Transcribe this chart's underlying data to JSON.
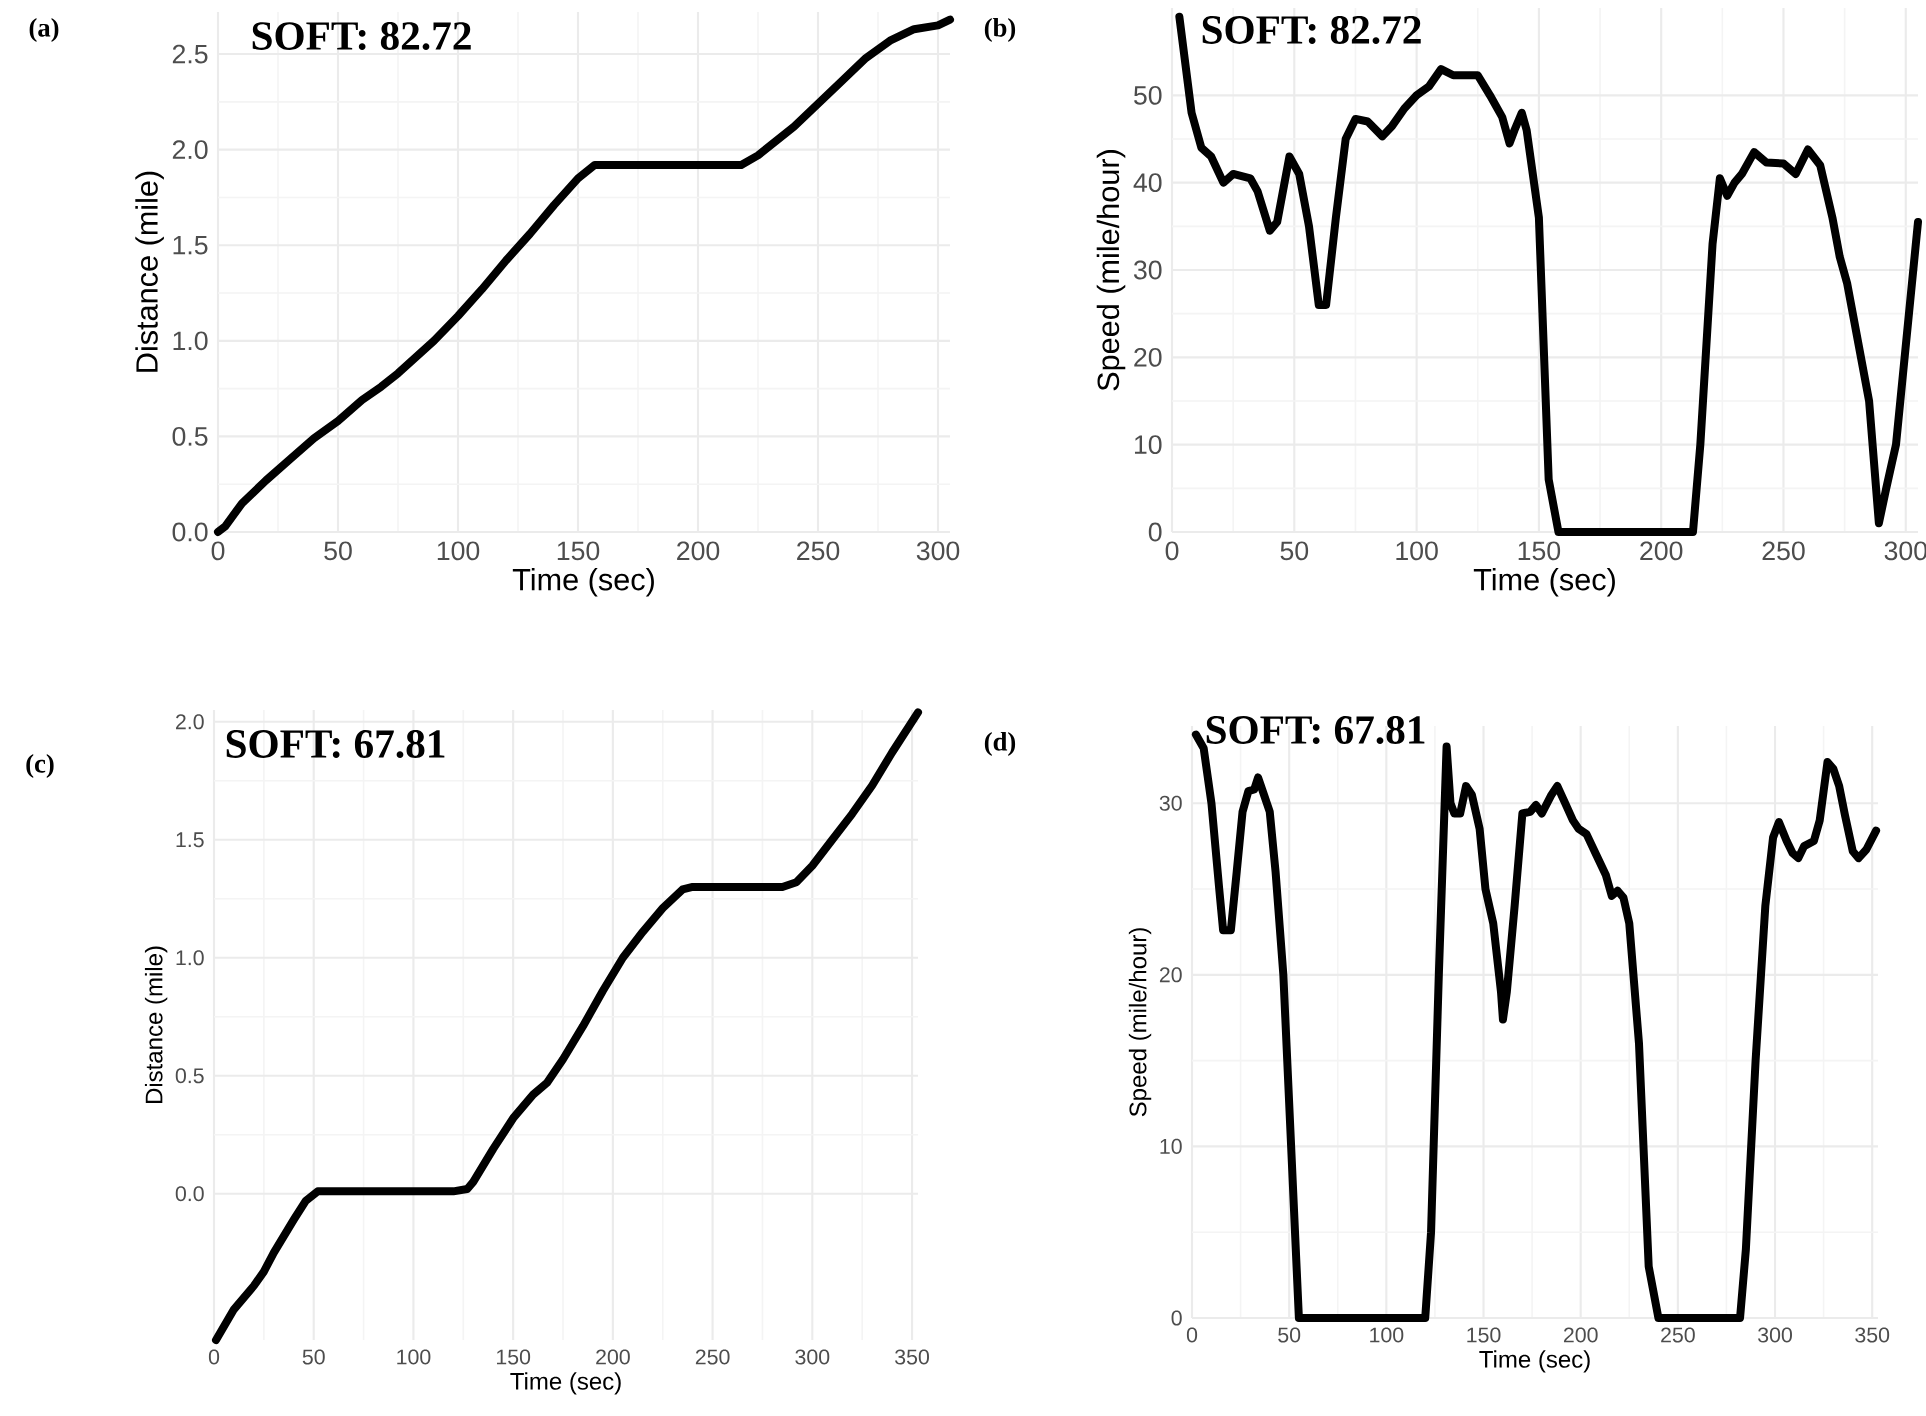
{
  "chart_data": [
    {
      "type": "line",
      "xlabel": "Time (sec)",
      "ylabel": "Distance (mile)",
      "xlim": [
        0,
        305
      ],
      "ylim": [
        0,
        2.72
      ],
      "xticks": [
        0,
        50,
        100,
        150,
        200,
        250,
        300
      ],
      "yticks": [
        {
          "value": 0,
          "label": "0.0"
        },
        {
          "value": 0.5,
          "label": "0.5"
        },
        {
          "value": 1,
          "label": "1.0"
        },
        {
          "value": 1.5,
          "label": "1.5"
        },
        {
          "value": 2,
          "label": "2.0"
        },
        {
          "value": 2.5,
          "label": "2.5"
        }
      ],
      "grid": true,
      "annotations": [
        "(a)",
        "SOFT: 82.72"
      ],
      "series": [
        {
          "color": "#000000",
          "x": [
            0,
            3,
            10,
            20,
            30,
            40,
            50,
            60,
            68,
            75,
            90,
            100,
            110,
            120,
            130,
            140,
            150,
            157,
            170,
            200,
            218,
            225,
            240,
            250,
            260,
            270,
            280,
            290,
            300,
            305
          ],
          "values": [
            0,
            0.03,
            0.15,
            0.27,
            0.38,
            0.49,
            0.58,
            0.69,
            0.76,
            0.83,
            1.0,
            1.13,
            1.27,
            1.42,
            1.56,
            1.71,
            1.85,
            1.92,
            1.92,
            1.92,
            1.92,
            1.97,
            2.12,
            2.24,
            2.36,
            2.48,
            2.57,
            2.63,
            2.65,
            2.68
          ]
        }
      ]
    },
    {
      "type": "line",
      "xlabel": "Time (sec)",
      "ylabel": "Speed (mile/hour)",
      "xlim": [
        0,
        305
      ],
      "ylim": [
        0,
        60
      ],
      "xticks": [
        0,
        50,
        100,
        150,
        200,
        250,
        300
      ],
      "yticks": [
        0,
        10,
        20,
        30,
        40,
        50
      ],
      "grid": true,
      "annotations": [
        "(b)",
        "SOFT: 82.72"
      ],
      "series": [
        {
          "color": "#000000",
          "x": [
            3,
            8,
            12,
            16,
            21,
            25,
            32,
            35,
            40,
            43,
            48,
            52,
            56,
            60,
            63,
            67,
            71,
            75,
            80,
            86,
            90,
            95,
            100,
            105,
            110,
            115,
            125,
            130,
            135,
            138,
            140,
            143,
            145,
            150,
            154,
            158,
            213,
            216,
            221,
            224,
            227,
            230,
            233,
            238,
            243,
            250,
            255,
            260,
            265,
            270,
            273,
            276,
            285,
            289,
            292,
            296,
            305
          ],
          "values": [
            59,
            48,
            44,
            43,
            40,
            41,
            40.5,
            39,
            34.5,
            35.5,
            43,
            41,
            35,
            26,
            26,
            36,
            45,
            47.3,
            47,
            45.3,
            46.5,
            48.5,
            50,
            51,
            53,
            52.3,
            52.3,
            50,
            47.5,
            44.5,
            46,
            48,
            46,
            36,
            6,
            0,
            0,
            10,
            33,
            40.5,
            38.5,
            40,
            41,
            43.5,
            42.3,
            42.2,
            41,
            43.8,
            42,
            36,
            31.5,
            28.5,
            15,
            1,
            5,
            10,
            35.5
          ]
        }
      ]
    },
    {
      "type": "line",
      "xlabel": "Time (sec)",
      "ylabel": "Distance (mile)",
      "xlim": [
        0,
        353
      ],
      "ylim": [
        -0.62,
        2.05
      ],
      "xticks": [
        0,
        50,
        100,
        150,
        200,
        250,
        300,
        350
      ],
      "yticks": [
        {
          "value": 0,
          "label": "0.0"
        },
        {
          "value": 0.5,
          "label": "0.5"
        },
        {
          "value": 1,
          "label": "1.0"
        },
        {
          "value": 1.5,
          "label": "1.5"
        },
        {
          "value": 2,
          "label": "2.0"
        }
      ],
      "grid": true,
      "annotations": [
        "(c)",
        "SOFT: 67.81"
      ],
      "series": [
        {
          "color": "#000000",
          "x": [
            1,
            10,
            20,
            25,
            30,
            40,
            46,
            52,
            60,
            120,
            127,
            130,
            140,
            150,
            160,
            167,
            175,
            185,
            195,
            205,
            215,
            225,
            235,
            240,
            285,
            292,
            300,
            310,
            320,
            330,
            340,
            353
          ],
          "values": [
            -0.62,
            -0.49,
            -0.39,
            -0.33,
            -0.25,
            -0.11,
            -0.03,
            0.01,
            0.01,
            0.01,
            0.02,
            0.05,
            0.19,
            0.32,
            0.42,
            0.47,
            0.57,
            0.71,
            0.86,
            1.0,
            1.11,
            1.21,
            1.29,
            1.3,
            1.3,
            1.32,
            1.39,
            1.5,
            1.61,
            1.73,
            1.87,
            2.04
          ]
        }
      ]
    },
    {
      "type": "line",
      "xlabel": "Time (sec)",
      "ylabel": "Speed (mile/hour)",
      "xlim": [
        0,
        353
      ],
      "ylim": [
        0,
        34.5
      ],
      "xticks": [
        0,
        50,
        100,
        150,
        200,
        250,
        300,
        350
      ],
      "yticks": [
        0,
        10,
        20,
        30
      ],
      "grid": true,
      "annotations": [
        "(d)",
        "SOFT: 67.81"
      ],
      "series": [
        {
          "color": "#000000",
          "x": [
            2,
            6,
            10,
            14,
            16,
            20,
            23,
            26,
            29,
            32,
            34,
            37,
            40,
            43,
            47,
            51,
            55,
            120,
            123,
            127,
            131,
            133,
            135,
            138,
            141,
            144,
            148,
            151,
            155,
            159,
            160,
            162,
            166,
            170,
            174,
            177,
            180,
            185,
            188,
            192,
            196,
            199,
            203,
            208,
            213,
            216,
            219,
            222,
            225,
            230,
            235,
            240,
            282,
            285,
            290,
            295,
            299,
            302,
            306,
            309,
            312,
            315,
            320,
            323,
            327,
            330,
            333,
            336,
            340,
            343,
            347,
            352
          ],
          "values": [
            34,
            33.2,
            30,
            25,
            22.6,
            22.6,
            26,
            29.5,
            30.7,
            30.8,
            31.5,
            30.5,
            29.5,
            26,
            20,
            10,
            0,
            0,
            5,
            20,
            33.3,
            30,
            29.4,
            29.4,
            31,
            30.5,
            28.5,
            25,
            23,
            19,
            17.4,
            19,
            24,
            29.4,
            29.5,
            29.9,
            29.4,
            30.5,
            31,
            30,
            29,
            28.5,
            28.2,
            27,
            25.8,
            24.6,
            24.9,
            24.5,
            23,
            16,
            3,
            0,
            0,
            4,
            15,
            24,
            28,
            28.9,
            27.8,
            27.1,
            26.8,
            27.5,
            27.8,
            29,
            32.4,
            32,
            31,
            29.3,
            27.2,
            26.8,
            27.3,
            28.4
          ]
        }
      ]
    }
  ]
}
